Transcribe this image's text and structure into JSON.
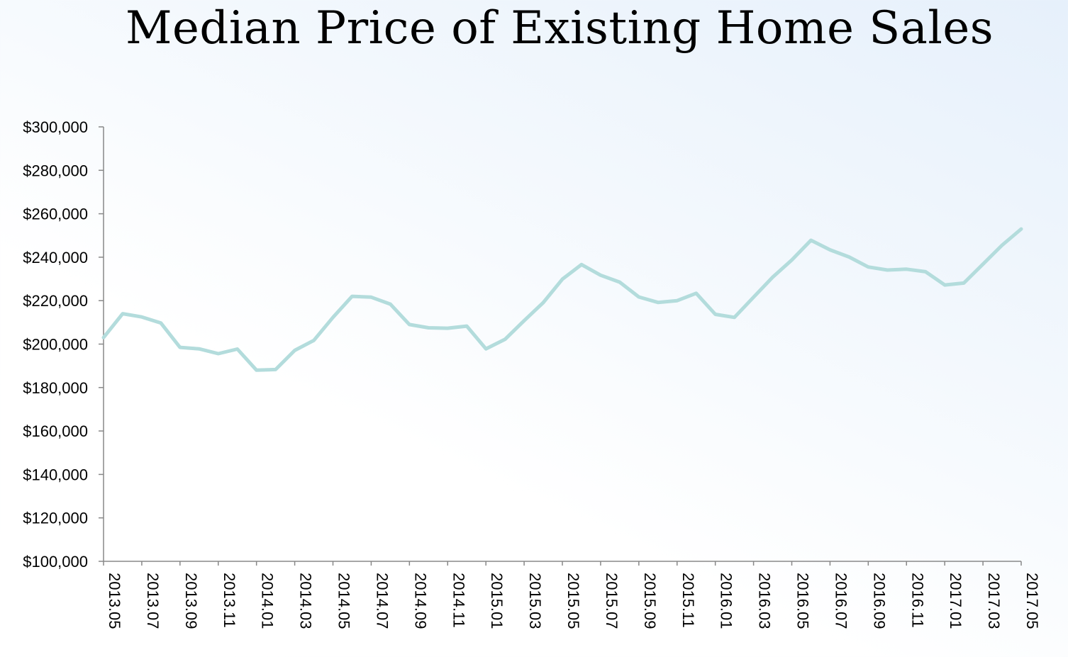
{
  "chart_data": {
    "type": "line",
    "title": "Median Price of Existing Home Sales",
    "xlabel": "",
    "ylabel": "",
    "ylim": [
      100000,
      300000
    ],
    "yticks": [
      100000,
      120000,
      140000,
      160000,
      180000,
      200000,
      220000,
      240000,
      260000,
      280000,
      300000
    ],
    "ytick_labels": [
      "$100,000",
      "$120,000",
      "$140,000",
      "$160,000",
      "$180,000",
      "$200,000",
      "$220,000",
      "$240,000",
      "$260,000",
      "$280,000",
      "$300,000"
    ],
    "xtick_labels": [
      "2013.05",
      "2013.07",
      "2013.09",
      "2013.11",
      "2014.01",
      "2014.03",
      "2014.05",
      "2014.07",
      "2014.09",
      "2014.11",
      "2015.01",
      "2015.03",
      "2015.05",
      "2015.07",
      "2015.09",
      "2015.11",
      "2016.01",
      "2016.03",
      "2016.05",
      "2016.07",
      "2016.09",
      "2016.11",
      "2017.01",
      "2017.03",
      "2017.05"
    ],
    "grid": false,
    "line_color": "#b3dcdc",
    "series": [
      {
        "values": [
          203000,
          214000,
          212500,
          209700,
          198500,
          197800,
          195600,
          197700,
          188000,
          188300,
          197100,
          201700,
          212300,
          222000,
          221600,
          218400,
          209000,
          207500,
          207300,
          208300,
          197800,
          202200,
          210800,
          219100,
          229900,
          236600,
          231700,
          228500,
          221700,
          219200,
          220000,
          223400,
          213700,
          212300,
          221600,
          230800,
          238700,
          247800,
          243400,
          240100,
          235500,
          234100,
          234500,
          233300,
          227200,
          228100,
          236800,
          245500,
          253000
        ]
      }
    ]
  }
}
